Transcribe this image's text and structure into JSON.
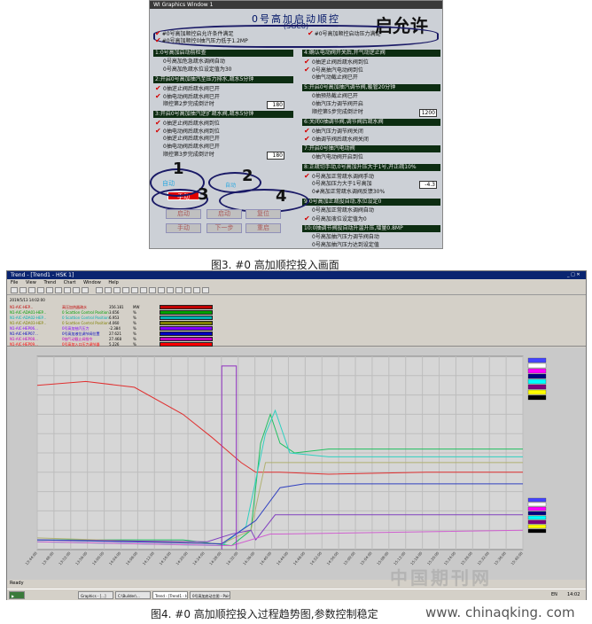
{
  "hmi": {
    "window_title": "WI Graphics Window 1",
    "title": "0号高加启动顺控",
    "subtitle": "(SGC8)",
    "allow_label": "启允许",
    "permit_left": [
      "#0号高加顺控启允许条件满足",
      "#0号高加顺控0抽汽压力低于1.2MP"
    ],
    "permit_right": "#0号高加顺控启动压力满足",
    "left_steps": [
      {
        "header": "1:0号高加启动前检查",
        "items": [
          {
            "text": "0号高加危急疏水调阀自动",
            "check": false
          },
          {
            "text": "0号高加危疏水位设定值为30",
            "check": false
          }
        ]
      },
      {
        "header": "2:开启0号高加抽汽至压力排水,疏水5分钟",
        "items": [
          {
            "text": "0抽逆止阀后疏水阀已开",
            "check": true
          },
          {
            "text": "0抽电动阀后疏水阀已开",
            "check": true
          },
          {
            "text": "顺控第2步完成倒计时",
            "check": false,
            "value": "180"
          }
        ]
      },
      {
        "header": "3:开启0号高加抽汽逆扩疏水阀,疏水5分钟",
        "items": [
          {
            "text": "0抽逆止阀后疏水阀到位",
            "check": true
          },
          {
            "text": "0抽电动阀后疏水阀到位",
            "check": true
          },
          {
            "text": "0抽逆止阀后疏水阀已开",
            "check": false
          },
          {
            "text": "0抽电动阀后疏水阀已开",
            "check": false
          },
          {
            "text": "顺控第3步完成倒计时",
            "check": false,
            "value": "180"
          }
        ]
      }
    ],
    "right_steps": [
      {
        "header": "4:确认电动阀开关后,开气动逆止阀",
        "items": [
          {
            "text": "0抽逆止阀后疏水阀到位",
            "check": true
          },
          {
            "text": "0号高抽汽电动阀到位",
            "check": true
          },
          {
            "text": "0抽气动截止阀已开",
            "check": false
          }
        ]
      },
      {
        "header": "5:开启0号高加抽汽调节阀,暖管20分钟",
        "items": [
          {
            "text": "0抽预热截止阀已开",
            "check": false
          },
          {
            "text": "0抽汽压力调节阀开启",
            "check": false
          },
          {
            "text": "顺控第5步完成倒计时",
            "check": false,
            "value": "1200"
          }
        ]
      },
      {
        "header": "6:关闭0抽调节阀,调节阀后疏水阀",
        "items": [
          {
            "text": "0抽汽压力调节阀关闭",
            "check": true
          },
          {
            "text": "0抽调节阀后疏水阀关闭",
            "check": true
          }
        ]
      },
      {
        "header": "7:开启0号抽汽电动阀",
        "items": [
          {
            "text": "0抽汽电动阀开启到位",
            "check": false
          }
        ]
      },
      {
        "header": "8:正疏切手动,0号高加升压大于1号,开正疏10%",
        "items": [
          {
            "text": "0号高加正常疏水调阀手动",
            "check": true
          },
          {
            "text": "0号高加压力大于1号高加",
            "check": false,
            "value": "-4.3"
          },
          {
            "text": "0#高加正常疏水调阀反馈30%",
            "check": false
          }
        ]
      },
      {
        "header": "9:0号高加正疏投自动,水位设定0",
        "items": [
          {
            "text": "0号高加正常疏水调阀自动",
            "check": false
          },
          {
            "text": "0号高加液位设定值为0",
            "check": true
          }
        ]
      },
      {
        "header": "10:0抽调节阀投自动升温升压,增量0.8MP",
        "items": [
          {
            "text": "0号高加抽汽压力调节阀自动",
            "check": false
          },
          {
            "text": "0号高加抽汽压力达到设定值",
            "check": false
          }
        ]
      }
    ],
    "mode_label": "手动",
    "auto_label": "自动",
    "buttons_row1": [
      "启动",
      "启动",
      "复位"
    ],
    "buttons_row2": [
      "手动",
      "下一步",
      "重启"
    ],
    "markers": [
      "1",
      "2",
      "3",
      "4"
    ]
  },
  "caption3": "图3. #0 高加顺控投入画面",
  "caption4": "图4. #0 高加顺控投入过程趋势图,参数控制稳定",
  "site": "www. chinaqking. com",
  "watermark": "中国期刊网",
  "trend": {
    "window_title": "Trend - [Trend1 - HSK 1]",
    "menu": [
      "File",
      "View",
      "Trend",
      "Chart",
      "Window",
      "Help"
    ],
    "datetime": "2019/5/13 14:02:00",
    "legend_rows": [
      {
        "tag": "N1-AIC-HEP...",
        "desc": "高压加热器疏水",
        "value": "356.181",
        "unit": "MW",
        "color": "#c00000"
      },
      {
        "tag": "N1-AIC-ADA01-HEP...",
        "desc": "0 Scattion Control Position",
        "value": "3.656",
        "unit": "%",
        "color": "#00a000"
      },
      {
        "tag": "N1-AIC-ADA02-HEP...",
        "desc": "0 Scattion Control Position",
        "value": "6.953",
        "unit": "%",
        "color": "#00b0b0"
      },
      {
        "tag": "N1-AIC-ADA03-HEP...",
        "desc": "0 Scattion Control Position",
        "value": "4.060",
        "unit": "%",
        "color": "#808000"
      },
      {
        "tag": "N1-AIC-HEP06...",
        "desc": "0号高加抽汽压力",
        "value": "-2.384",
        "unit": "%",
        "color": "#8000ff"
      },
      {
        "tag": "N1-AIC-HEP07...",
        "desc": "0号高加液位调节阀位置",
        "value": "27.621",
        "unit": "%",
        "color": "#0000c0"
      },
      {
        "tag": "N1-AIC-HEP08...",
        "desc": "0抽气动截止阀指令",
        "value": "27.468",
        "unit": "%",
        "color": "#c000c0"
      },
      {
        "tag": "N1-AIC-HEP09...",
        "desc": "0号高加入口压力调节器",
        "value": "5.226",
        "unit": "%",
        "color": "#ff0000"
      }
    ],
    "time_labels": [
      "13:44:00",
      "13:48:00",
      "13:52:00",
      "13:56:00",
      "14:00:00",
      "14:04:00",
      "14:08:00",
      "14:12:00",
      "14:16:00",
      "14:20:00",
      "14:24:00",
      "14:28:00",
      "14:32:00",
      "14:36:00",
      "14:40:00",
      "14:44:00",
      "14:48:00",
      "14:52:00",
      "14:56:00",
      "15:00:00",
      "15:04:00",
      "15:08:00",
      "15:12:00",
      "15:16:00",
      "15:20:00",
      "15:24:00",
      "15:28:00",
      "15:32:00",
      "15:36:00",
      "15:40:00"
    ],
    "status_text": "Ready",
    "taskbar": [
      "Graphics - [...]",
      "C:\\Builder\\...",
      "Trend - [Trend1 - HSK...]",
      "0号高加启动主图 - Paint"
    ],
    "clock": "14:02",
    "ime": "EN"
  }
}
